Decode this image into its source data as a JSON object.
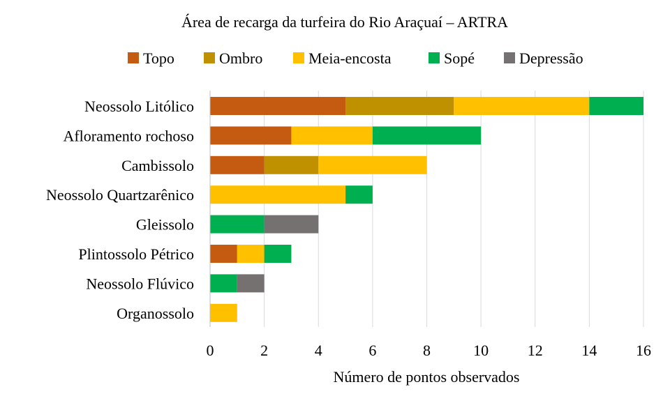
{
  "chart_data": {
    "type": "bar",
    "orientation": "horizontal",
    "stacked": true,
    "title": "Área de recarga da turfeira do Rio Araçuaí – ARTRA",
    "xlabel": "Número de pontos observados",
    "ylabel": "",
    "xlim": [
      0,
      16
    ],
    "xticks": [
      0,
      2,
      4,
      6,
      8,
      10,
      12,
      14,
      16
    ],
    "grid": "vertical",
    "legend_position": "top",
    "categories": [
      "Neossolo Litólico",
      "Afloramento rochoso",
      "Cambissolo",
      "Neossolo Quartzarênico",
      "Gleissolo",
      "Plintossolo Pétrico",
      "Neossolo Flúvico",
      "Organossolo"
    ],
    "series": [
      {
        "name": "Topo",
        "color": "#C55A11",
        "values": [
          5,
          3,
          2,
          0,
          0,
          1,
          0,
          0
        ]
      },
      {
        "name": "Ombro",
        "color": "#BF9000",
        "values": [
          4,
          0,
          2,
          0,
          0,
          0,
          0,
          0
        ]
      },
      {
        "name": "Meia-encosta",
        "color": "#FFC000",
        "values": [
          5,
          3,
          4,
          5,
          0,
          1,
          0,
          1
        ]
      },
      {
        "name": "Sopé",
        "color": "#00B050",
        "values": [
          2,
          4,
          0,
          1,
          2,
          1,
          1,
          0
        ]
      },
      {
        "name": "Depressão",
        "color": "#767171",
        "values": [
          0,
          0,
          0,
          0,
          2,
          0,
          1,
          0
        ]
      }
    ]
  }
}
